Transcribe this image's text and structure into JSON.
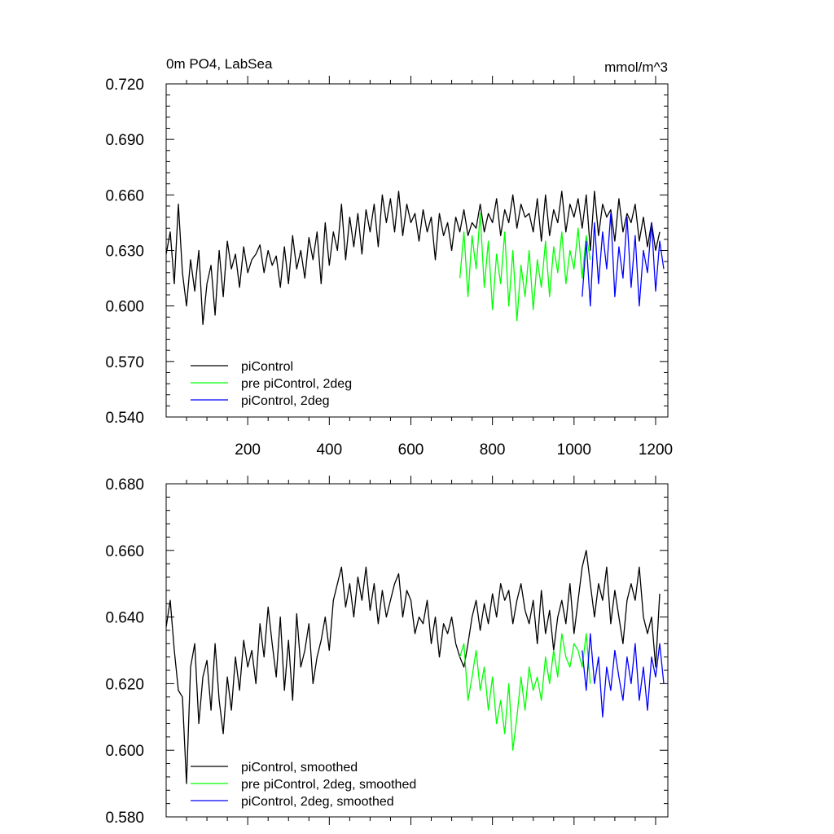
{
  "chart_data": [
    {
      "type": "line",
      "title": "0m PO4, LabSea",
      "units": "mmol/m^3",
      "xlim": [
        0,
        1230
      ],
      "ylim": [
        0.54,
        0.72
      ],
      "xticks": [
        200,
        400,
        600,
        800,
        1000,
        1200
      ],
      "xtick_labels": [
        "200",
        "400",
        "600",
        "800",
        "1000",
        "1200"
      ],
      "yticks": [
        0.54,
        0.57,
        0.6,
        0.63,
        0.66,
        0.69,
        0.72
      ],
      "ytick_labels": [
        "0.540",
        "0.570",
        "0.600",
        "0.630",
        "0.660",
        "0.690",
        "0.720"
      ],
      "legend": "bottom-left",
      "series": [
        {
          "name": "piControl",
          "color": "#000000",
          "x_start": 0,
          "x_step": 10,
          "values": [
            0.628,
            0.64,
            0.612,
            0.655,
            0.618,
            0.6,
            0.625,
            0.608,
            0.63,
            0.59,
            0.612,
            0.622,
            0.595,
            0.63,
            0.605,
            0.635,
            0.62,
            0.628,
            0.61,
            0.632,
            0.618,
            0.625,
            0.628,
            0.633,
            0.618,
            0.63,
            0.622,
            0.627,
            0.61,
            0.632,
            0.612,
            0.638,
            0.62,
            0.63,
            0.615,
            0.637,
            0.625,
            0.64,
            0.612,
            0.645,
            0.622,
            0.64,
            0.63,
            0.655,
            0.625,
            0.648,
            0.632,
            0.65,
            0.628,
            0.652,
            0.64,
            0.655,
            0.632,
            0.66,
            0.645,
            0.658,
            0.64,
            0.662,
            0.638,
            0.655,
            0.645,
            0.65,
            0.635,
            0.652,
            0.64,
            0.648,
            0.625,
            0.65,
            0.638,
            0.645,
            0.63,
            0.648,
            0.64,
            0.652,
            0.638,
            0.645,
            0.642,
            0.655,
            0.64,
            0.65,
            0.645,
            0.658,
            0.638,
            0.652,
            0.645,
            0.66,
            0.642,
            0.655,
            0.648,
            0.65,
            0.64,
            0.658,
            0.635,
            0.66,
            0.638,
            0.652,
            0.645,
            0.662,
            0.64,
            0.655,
            0.648,
            0.658,
            0.642,
            0.66,
            0.63,
            0.662,
            0.638,
            0.655,
            0.648,
            0.652,
            0.635,
            0.658,
            0.64,
            0.65,
            0.645,
            0.655,
            0.635,
            0.648,
            0.632,
            0.645,
            0.63,
            0.64
          ]
        },
        {
          "name": "pre piControl, 2deg",
          "color": "#00ff00",
          "x_start": 720,
          "x_step": 10,
          "values": [
            0.615,
            0.64,
            0.605,
            0.638,
            0.62,
            0.65,
            0.61,
            0.635,
            0.598,
            0.628,
            0.612,
            0.64,
            0.6,
            0.63,
            0.592,
            0.622,
            0.605,
            0.63,
            0.598,
            0.625,
            0.61,
            0.635,
            0.605,
            0.632,
            0.618,
            0.64,
            0.612,
            0.63,
            0.62,
            0.642,
            0.615,
            0.638,
            0.625
          ]
        },
        {
          "name": "piControl, 2deg",
          "color": "#0000ff",
          "x_start": 1020,
          "x_step": 10,
          "values": [
            0.605,
            0.635,
            0.6,
            0.645,
            0.612,
            0.64,
            0.62,
            0.65,
            0.605,
            0.632,
            0.615,
            0.648,
            0.61,
            0.638,
            0.6,
            0.63,
            0.618,
            0.645,
            0.608,
            0.635,
            0.62
          ]
        }
      ],
      "legend_entries": [
        "piControl",
        "pre piControl, 2deg",
        "piControl, 2deg"
      ]
    },
    {
      "type": "line",
      "title": "",
      "xlim": [
        0,
        1230
      ],
      "ylim": [
        0.58,
        0.68
      ],
      "yticks": [
        0.58,
        0.6,
        0.62,
        0.64,
        0.66,
        0.68
      ],
      "ytick_labels": [
        "0.580",
        "0.600",
        "0.620",
        "0.640",
        "0.660",
        "0.680"
      ],
      "legend": "bottom-left",
      "series": [
        {
          "name": "piControl, smoothed",
          "color": "#000000",
          "x_start": 0,
          "x_step": 10,
          "values": [
            0.637,
            0.645,
            0.63,
            0.618,
            0.616,
            0.59,
            0.625,
            0.632,
            0.608,
            0.622,
            0.627,
            0.612,
            0.632,
            0.615,
            0.605,
            0.622,
            0.612,
            0.628,
            0.618,
            0.633,
            0.625,
            0.63,
            0.62,
            0.638,
            0.628,
            0.643,
            0.632,
            0.622,
            0.64,
            0.618,
            0.633,
            0.615,
            0.641,
            0.625,
            0.63,
            0.638,
            0.62,
            0.628,
            0.633,
            0.64,
            0.63,
            0.645,
            0.65,
            0.655,
            0.643,
            0.65,
            0.64,
            0.652,
            0.645,
            0.655,
            0.642,
            0.65,
            0.638,
            0.648,
            0.64,
            0.645,
            0.65,
            0.653,
            0.64,
            0.648,
            0.645,
            0.635,
            0.64,
            0.638,
            0.645,
            0.632,
            0.64,
            0.628,
            0.638,
            0.635,
            0.64,
            0.632,
            0.628,
            0.625,
            0.632,
            0.64,
            0.645,
            0.636,
            0.644,
            0.638,
            0.647,
            0.64,
            0.65,
            0.645,
            0.648,
            0.638,
            0.645,
            0.65,
            0.642,
            0.638,
            0.645,
            0.632,
            0.648,
            0.635,
            0.642,
            0.63,
            0.64,
            0.645,
            0.638,
            0.65,
            0.635,
            0.645,
            0.655,
            0.66,
            0.65,
            0.64,
            0.65,
            0.645,
            0.655,
            0.638,
            0.648,
            0.64,
            0.632,
            0.645,
            0.65,
            0.645,
            0.655,
            0.64,
            0.635,
            0.64,
            0.625,
            0.647
          ]
        },
        {
          "name": "pre piControl, 2deg, smoothed",
          "color": "#00ff00",
          "x_start": 720,
          "x_step": 10,
          "values": [
            0.628,
            0.632,
            0.615,
            0.622,
            0.63,
            0.618,
            0.625,
            0.612,
            0.622,
            0.608,
            0.615,
            0.605,
            0.62,
            0.6,
            0.61,
            0.622,
            0.612,
            0.625,
            0.618,
            0.622,
            0.615,
            0.628,
            0.62,
            0.63,
            0.622,
            0.635,
            0.628,
            0.625,
            0.632,
            0.63,
            0.625,
            0.635,
            0.62
          ]
        },
        {
          "name": "piControl, 2deg, smoothed",
          "color": "#0000ff",
          "x_start": 1020,
          "x_step": 10,
          "values": [
            0.63,
            0.618,
            0.635,
            0.62,
            0.628,
            0.61,
            0.625,
            0.618,
            0.63,
            0.622,
            0.615,
            0.628,
            0.62,
            0.632,
            0.615,
            0.625,
            0.612,
            0.628,
            0.622,
            0.632,
            0.62
          ]
        }
      ],
      "legend_entries": [
        "piControl, smoothed",
        "pre piControl, 2deg, smoothed",
        "piControl, 2deg, smoothed"
      ]
    }
  ]
}
